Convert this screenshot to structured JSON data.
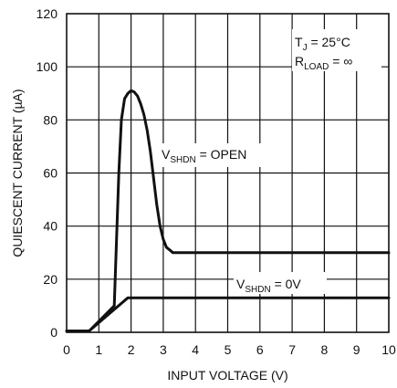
{
  "chart_data": {
    "type": "line",
    "xlabel": "INPUT VOLTAGE (V)",
    "ylabel": "QUIESCENT CURRENT (µA)",
    "xlim": [
      0,
      10
    ],
    "ylim": [
      0,
      120
    ],
    "x_ticks": [
      "0",
      "1",
      "2",
      "3",
      "4",
      "5",
      "6",
      "7",
      "8",
      "9",
      "10"
    ],
    "y_ticks": [
      "0",
      "20",
      "40",
      "60",
      "80",
      "100",
      "120"
    ],
    "grid": true,
    "conditions": {
      "tj": {
        "main": "T",
        "sub": "J",
        "rest": " = 25°C"
      },
      "rload": {
        "main": "R",
        "sub": "LOAD",
        "rest": " = ∞"
      }
    },
    "series": [
      {
        "name": {
          "main": "V",
          "sub": "SHDN",
          "rest": " = OPEN"
        },
        "x": [
          0,
          0.7,
          1.48,
          1.55,
          1.62,
          1.7,
          1.8,
          1.9,
          2.0,
          2.1,
          2.2,
          2.3,
          2.4,
          2.5,
          2.6,
          2.7,
          2.8,
          2.9,
          3.0,
          3.1,
          3.2,
          3.3,
          3.4,
          3.6,
          10
        ],
        "y": [
          0.5,
          0.5,
          10,
          35,
          60,
          80,
          88,
          90,
          91,
          90.5,
          89,
          86,
          82,
          76,
          68,
          58,
          48,
          40,
          35,
          32,
          31,
          30,
          30,
          30,
          30
        ]
      },
      {
        "name": {
          "main": "V",
          "sub": "SHDN",
          "rest": " = 0V"
        },
        "x": [
          0,
          0.7,
          1.9,
          10
        ],
        "y": [
          0.5,
          0.5,
          13,
          13
        ]
      }
    ]
  }
}
